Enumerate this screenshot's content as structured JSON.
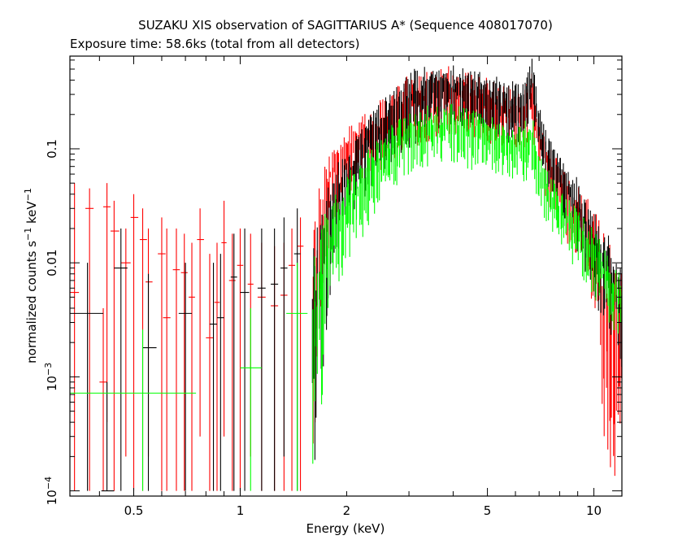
{
  "chart_data": {
    "type": "scatter",
    "title": "SUZAKU XIS observation of SAGITTARIUS A* (Sequence 408017070)",
    "subtitle": "Exposure time: 58.6ks (total from all detectors)",
    "xlabel": "Energy (keV)",
    "ylabel_main": "normalized counts s",
    "ylabel_sup1": "−1",
    "ylabel_mid": " keV",
    "ylabel_sup2": "−1",
    "x_scale": "log",
    "y_scale": "log",
    "xlim": [
      0.33,
      12.0
    ],
    "ylim": [
      9e-05,
      0.65
    ],
    "x_ticks": [
      {
        "value": 0.5,
        "label": "0.5"
      },
      {
        "value": 1,
        "label": "1"
      },
      {
        "value": 2,
        "label": "2"
      },
      {
        "value": 5,
        "label": "5"
      },
      {
        "value": 10,
        "label": "10"
      }
    ],
    "y_ticks": [
      {
        "value": 0.0001,
        "base": "10",
        "exp": "−4"
      },
      {
        "value": 0.001,
        "base": "10",
        "exp": "−3"
      },
      {
        "value": 0.01,
        "label": "0.01"
      },
      {
        "value": 0.1,
        "label": "0.1"
      }
    ],
    "grid": false,
    "legend": "none",
    "series": [
      {
        "color": "#ff0000",
        "low_energy_bins": [
          {
            "x": 0.34,
            "xerr": [
              0.33,
              0.35
            ],
            "y": 0.0055,
            "yerr": [
              0.0001,
              0.05
            ]
          },
          {
            "x": 0.375,
            "xerr": [
              0.365,
              0.385
            ],
            "y": 0.03,
            "yerr": [
              0.0001,
              0.045
            ]
          },
          {
            "x": 0.42,
            "xerr": [
              0.41,
              0.43
            ],
            "y": 0.031,
            "yerr": [
              0.0004,
              0.05
            ]
          },
          {
            "x": 0.44,
            "xerr": [
              0.43,
              0.455
            ],
            "y": 0.019,
            "yerr": [
              0.0001,
              0.035
            ]
          },
          {
            "x": 0.41,
            "xerr": [
              0.4,
              0.42
            ],
            "y": 0.0009,
            "yerr": [
              0.0001,
              0.004
            ]
          },
          {
            "x": 0.475,
            "xerr": [
              0.46,
              0.49
            ],
            "y": 0.01,
            "yerr": [
              0.0002,
              0.02
            ]
          },
          {
            "x": 0.5,
            "xerr": [
              0.49,
              0.515
            ],
            "y": 0.025,
            "yerr": [
              0.0001,
              0.04
            ]
          },
          {
            "x": 0.53,
            "xerr": [
              0.52,
              0.545
            ],
            "y": 0.016,
            "yerr": [
              0.0001,
              0.03
            ]
          },
          {
            "x": 0.55,
            "xerr": [
              0.54,
              0.565
            ],
            "y": 0.0068,
            "yerr": [
              0.0002,
              0.02
            ]
          },
          {
            "x": 0.6,
            "xerr": [
              0.585,
              0.615
            ],
            "y": 0.012,
            "yerr": [
              0.0001,
              0.025
            ]
          },
          {
            "x": 0.62,
            "xerr": [
              0.605,
              0.635
            ],
            "y": 0.0033,
            "yerr": [
              0.0001,
              0.02
            ]
          },
          {
            "x": 0.66,
            "xerr": [
              0.645,
              0.675
            ],
            "y": 0.0087,
            "yerr": [
              0.0001,
              0.02
            ]
          },
          {
            "x": 0.695,
            "xerr": [
              0.68,
              0.71
            ],
            "y": 0.0082,
            "yerr": [
              0.0001,
              0.018
            ]
          },
          {
            "x": 0.73,
            "xerr": [
              0.715,
              0.745
            ],
            "y": 0.005,
            "yerr": [
              0.0001,
              0.015
            ]
          },
          {
            "x": 0.77,
            "xerr": [
              0.755,
              0.79
            ],
            "y": 0.016,
            "yerr": [
              0.0003,
              0.03
            ]
          },
          {
            "x": 0.82,
            "xerr": [
              0.8,
              0.84
            ],
            "y": 0.0022,
            "yerr": [
              0.0001,
              0.012
            ]
          },
          {
            "x": 0.86,
            "xerr": [
              0.845,
              0.875
            ],
            "y": 0.0045,
            "yerr": [
              0.0001,
              0.015
            ]
          },
          {
            "x": 0.9,
            "xerr": [
              0.885,
              0.915
            ],
            "y": 0.015,
            "yerr": [
              0.0003,
              0.035
            ]
          },
          {
            "x": 0.95,
            "xerr": [
              0.93,
              0.97
            ],
            "y": 0.007,
            "yerr": [
              0.0001,
              0.018
            ]
          },
          {
            "x": 1.0,
            "xerr": [
              0.98,
              1.02
            ],
            "y": 0.0095,
            "yerr": [
              0.0001,
              0.02
            ]
          },
          {
            "x": 1.07,
            "xerr": [
              1.05,
              1.09
            ],
            "y": 0.0065,
            "yerr": [
              0.0002,
              0.018
            ]
          },
          {
            "x": 1.15,
            "xerr": [
              1.12,
              1.18
            ],
            "y": 0.005,
            "yerr": [
              0.0001,
              0.015
            ]
          },
          {
            "x": 1.25,
            "xerr": [
              1.22,
              1.28
            ],
            "y": 0.0042,
            "yerr": [
              0.0001,
              0.014
            ]
          },
          {
            "x": 1.33,
            "xerr": [
              1.3,
              1.36
            ],
            "y": 0.0052,
            "yerr": [
              0.0001,
              0.015
            ]
          },
          {
            "x": 1.4,
            "xerr": [
              1.37,
              1.43
            ],
            "y": 0.0095,
            "yerr": [
              0.0001,
              0.02
            ]
          },
          {
            "x": 1.48,
            "xerr": [
              1.45,
              1.51
            ],
            "y": 0.014,
            "yerr": [
              0.0001,
              0.025
            ]
          }
        ],
        "envelope": [
          {
            "x": 1.6,
            "ymin": 0.0001,
            "ymax": 0.03
          },
          {
            "x": 1.7,
            "ymin": 0.002,
            "ymax": 0.06
          },
          {
            "x": 1.8,
            "ymin": 0.02,
            "ymax": 0.12
          },
          {
            "x": 2.0,
            "ymin": 0.04,
            "ymax": 0.15
          },
          {
            "x": 2.3,
            "ymin": 0.05,
            "ymax": 0.22
          },
          {
            "x": 2.6,
            "ymin": 0.06,
            "ymax": 0.3
          },
          {
            "x": 3.0,
            "ymin": 0.1,
            "ymax": 0.45
          },
          {
            "x": 3.5,
            "ymin": 0.12,
            "ymax": 0.5
          },
          {
            "x": 4.0,
            "ymin": 0.13,
            "ymax": 0.55
          },
          {
            "x": 4.5,
            "ymin": 0.12,
            "ymax": 0.5
          },
          {
            "x": 5.0,
            "ymin": 0.11,
            "ymax": 0.42
          },
          {
            "x": 5.5,
            "ymin": 0.1,
            "ymax": 0.37
          },
          {
            "x": 6.0,
            "ymin": 0.09,
            "ymax": 0.34
          },
          {
            "x": 6.4,
            "ymin": 0.1,
            "ymax": 0.36
          },
          {
            "x": 6.7,
            "ymin": 0.12,
            "ymax": 0.5
          },
          {
            "x": 7.0,
            "ymin": 0.05,
            "ymax": 0.2
          },
          {
            "x": 7.5,
            "ymin": 0.03,
            "ymax": 0.11
          },
          {
            "x": 8.0,
            "ymin": 0.02,
            "ymax": 0.08
          },
          {
            "x": 9.0,
            "ymin": 0.01,
            "ymax": 0.05
          },
          {
            "x": 10.0,
            "ymin": 0.004,
            "ymax": 0.03
          },
          {
            "x": 11.0,
            "ymin": 0.0001,
            "ymax": 0.02
          },
          {
            "x": 12.0,
            "ymin": 0.0001,
            "ymax": 0.01
          }
        ]
      },
      {
        "color": "#000000",
        "low_energy_bins": [
          {
            "x": 0.37,
            "xerr": [
              0.33,
              0.41
            ],
            "y": 0.0036,
            "yerr": [
              0.0001,
              0.01
            ]
          },
          {
            "x": 0.42,
            "xerr": [
              0.405,
              0.44
            ],
            "y": 0.0001,
            "yerr": [
              0.0001,
              0.0009
            ]
          },
          {
            "x": 0.46,
            "xerr": [
              0.44,
              0.48
            ],
            "y": 0.009,
            "yerr": [
              0.0001,
              0.02
            ]
          },
          {
            "x": 0.55,
            "xerr": [
              0.53,
              0.58
            ],
            "y": 0.0018,
            "yerr": [
              0.0001,
              0.008
            ]
          },
          {
            "x": 0.7,
            "xerr": [
              0.67,
              0.73
            ],
            "y": 0.0036,
            "yerr": [
              0.0001,
              0.01
            ]
          },
          {
            "x": 0.84,
            "xerr": [
              0.82,
              0.86
            ],
            "y": 0.0029,
            "yerr": [
              0.0001,
              0.01
            ]
          },
          {
            "x": 0.88,
            "xerr": [
              0.86,
              0.9
            ],
            "y": 0.0033,
            "yerr": [
              0.0001,
              0.012
            ]
          },
          {
            "x": 0.96,
            "xerr": [
              0.94,
              0.98
            ],
            "y": 0.0075,
            "yerr": [
              0.0001,
              0.018
            ]
          },
          {
            "x": 1.03,
            "xerr": [
              1.0,
              1.06
            ],
            "y": 0.0055,
            "yerr": [
              0.0001,
              0.02
            ]
          },
          {
            "x": 1.15,
            "xerr": [
              1.12,
              1.18
            ],
            "y": 0.006,
            "yerr": [
              0.0001,
              0.02
            ]
          },
          {
            "x": 1.25,
            "xerr": [
              1.22,
              1.28
            ],
            "y": 0.0065,
            "yerr": [
              0.0001,
              0.02
            ]
          },
          {
            "x": 1.33,
            "xerr": [
              1.3,
              1.36
            ],
            "y": 0.009,
            "yerr": [
              0.0002,
              0.025
            ]
          },
          {
            "x": 1.45,
            "xerr": [
              1.42,
              1.48
            ],
            "y": 0.012,
            "yerr": [
              0.0001,
              0.03
            ]
          }
        ],
        "envelope": [
          {
            "x": 1.6,
            "ymin": 0.0001,
            "ymax": 0.02
          },
          {
            "x": 1.8,
            "ymin": 0.005,
            "ymax": 0.06
          },
          {
            "x": 2.0,
            "ymin": 0.02,
            "ymax": 0.1
          },
          {
            "x": 2.3,
            "ymin": 0.04,
            "ymax": 0.2
          },
          {
            "x": 2.6,
            "ymin": 0.07,
            "ymax": 0.3
          },
          {
            "x": 3.0,
            "ymin": 0.1,
            "ymax": 0.5
          },
          {
            "x": 3.5,
            "ymin": 0.14,
            "ymax": 0.55
          },
          {
            "x": 4.0,
            "ymin": 0.15,
            "ymax": 0.55
          },
          {
            "x": 4.5,
            "ymin": 0.14,
            "ymax": 0.5
          },
          {
            "x": 5.0,
            "ymin": 0.12,
            "ymax": 0.45
          },
          {
            "x": 5.5,
            "ymin": 0.11,
            "ymax": 0.42
          },
          {
            "x": 6.0,
            "ymin": 0.11,
            "ymax": 0.4
          },
          {
            "x": 6.4,
            "ymin": 0.12,
            "ymax": 0.4
          },
          {
            "x": 6.7,
            "ymin": 0.2,
            "ymax": 0.65
          },
          {
            "x": 7.0,
            "ymin": 0.06,
            "ymax": 0.25
          },
          {
            "x": 7.5,
            "ymin": 0.04,
            "ymax": 0.13
          },
          {
            "x": 8.0,
            "ymin": 0.025,
            "ymax": 0.09
          },
          {
            "x": 9.0,
            "ymin": 0.012,
            "ymax": 0.055
          },
          {
            "x": 10.0,
            "ymin": 0.005,
            "ymax": 0.03
          },
          {
            "x": 11.0,
            "ymin": 0.002,
            "ymax": 0.02
          },
          {
            "x": 12.0,
            "ymin": 0.001,
            "ymax": 0.012
          }
        ]
      },
      {
        "color": "#00ff00",
        "low_energy_bins": [
          {
            "x": 0.5,
            "xerr": [
              0.33,
              0.75
            ],
            "y": 0.00072,
            "yerr": [
              0.00072,
              0.00072
            ]
          },
          {
            "x": 0.53,
            "xerr": [
              0.53,
              0.53
            ],
            "y": 0.00072,
            "yerr": [
              0.0001,
              0.0026
            ]
          },
          {
            "x": 1.07,
            "xerr": [
              1.0,
              1.15
            ],
            "y": 0.0012,
            "yerr": [
              0.0001,
              0.004
            ]
          },
          {
            "x": 1.45,
            "xerr": [
              1.35,
              1.55
            ],
            "y": 0.0036,
            "yerr": [
              0.0001,
              0.01
            ]
          }
        ],
        "envelope": [
          {
            "x": 1.6,
            "ymin": 0.0001,
            "ymax": 0.015
          },
          {
            "x": 1.8,
            "ymin": 0.003,
            "ymax": 0.04
          },
          {
            "x": 2.0,
            "ymin": 0.01,
            "ymax": 0.06
          },
          {
            "x": 2.3,
            "ymin": 0.02,
            "ymax": 0.1
          },
          {
            "x": 2.6,
            "ymin": 0.04,
            "ymax": 0.15
          },
          {
            "x": 3.0,
            "ymin": 0.06,
            "ymax": 0.22
          },
          {
            "x": 3.5,
            "ymin": 0.07,
            "ymax": 0.25
          },
          {
            "x": 4.0,
            "ymin": 0.07,
            "ymax": 0.25
          },
          {
            "x": 4.5,
            "ymin": 0.065,
            "ymax": 0.22
          },
          {
            "x": 5.0,
            "ymin": 0.06,
            "ymax": 0.2
          },
          {
            "x": 5.5,
            "ymin": 0.055,
            "ymax": 0.18
          },
          {
            "x": 6.0,
            "ymin": 0.05,
            "ymax": 0.17
          },
          {
            "x": 6.4,
            "ymin": 0.05,
            "ymax": 0.18
          },
          {
            "x": 6.7,
            "ymin": 0.06,
            "ymax": 0.22
          },
          {
            "x": 7.0,
            "ymin": 0.03,
            "ymax": 0.09
          },
          {
            "x": 7.5,
            "ymin": 0.02,
            "ymax": 0.06
          },
          {
            "x": 8.0,
            "ymin": 0.015,
            "ymax": 0.045
          },
          {
            "x": 9.0,
            "ymin": 0.008,
            "ymax": 0.03
          },
          {
            "x": 10.0,
            "ymin": 0.005,
            "ymax": 0.02
          },
          {
            "x": 11.0,
            "ymin": 0.003,
            "ymax": 0.012
          },
          {
            "x": 12.0,
            "ymin": 0.002,
            "ymax": 0.008
          }
        ]
      }
    ]
  }
}
